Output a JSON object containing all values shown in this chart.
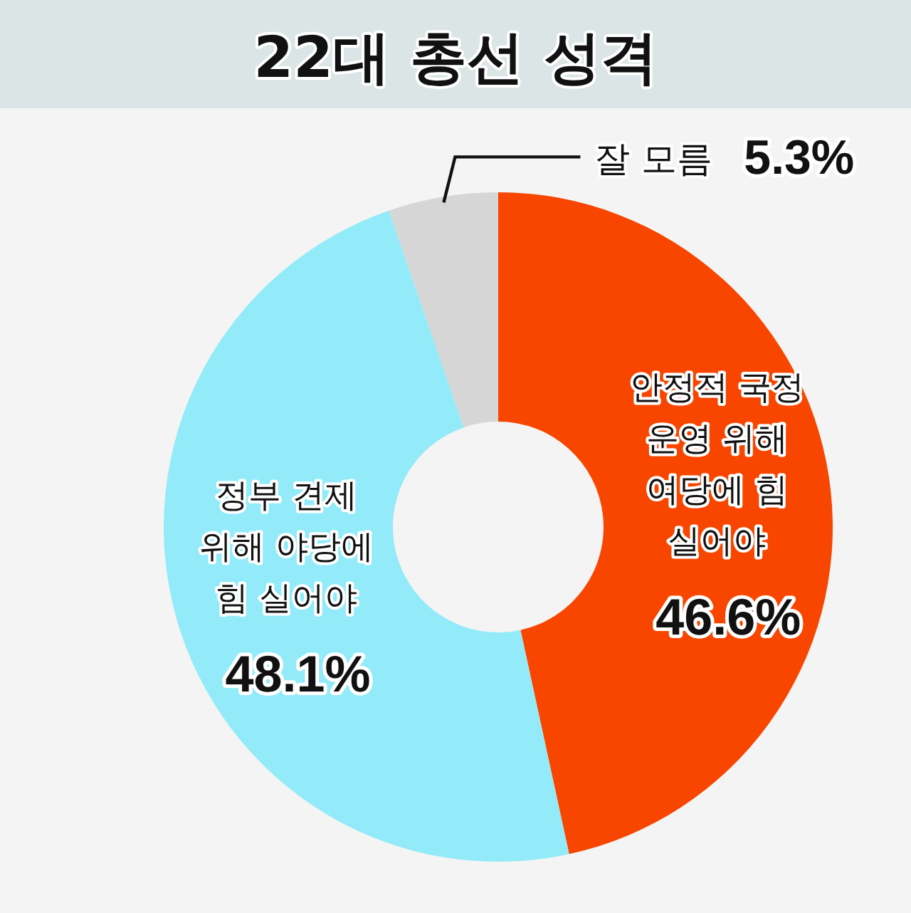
{
  "chart_data": {
    "type": "donut",
    "title": "22대 총선 성격",
    "categories": [
      "안정적 국정 운영 위해 여당에 힘 실어야",
      "정부 견제 위해 야당에 힘 실어야",
      "잘 모름"
    ],
    "values": [
      46.6,
      48.1,
      5.3
    ],
    "colors": [
      "#f84600",
      "#93ebf9",
      "#d6d6d6"
    ],
    "value_labels": [
      "46.6%",
      "48.1%",
      "5.3%"
    ]
  }
}
